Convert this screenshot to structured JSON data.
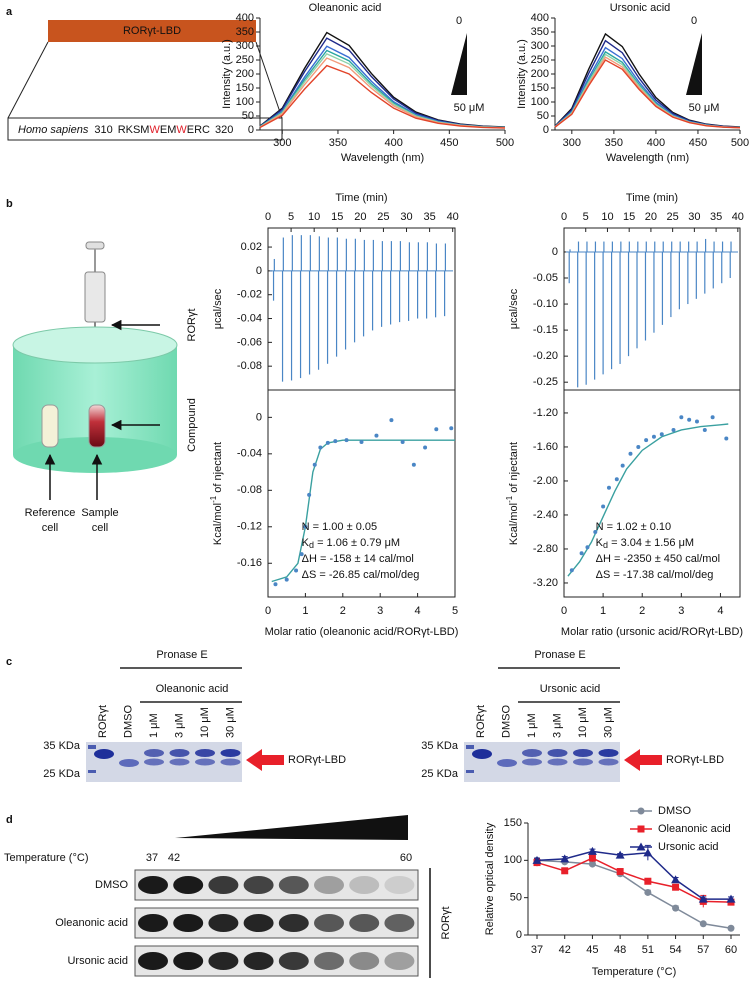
{
  "panel_labels": [
    "a",
    "b",
    "c",
    "d"
  ],
  "panel_a": {
    "domain_label": "RORγt-LBD",
    "species": "Homo sapiens",
    "start": "310",
    "sequence": [
      "RKSM",
      "W",
      "EM",
      "W",
      "ERC"
    ],
    "end": "320"
  },
  "panel_b": {
    "syringe_label": "RORγt",
    "cell_label": "Compound",
    "reference_cell": [
      "Reference",
      "cell"
    ],
    "sample_cell": [
      "Sample",
      "cell"
    ]
  },
  "panel_c": {
    "gels": [
      {
        "protease": "Pronase E",
        "compound": "Oleanonic acid",
        "lanes": [
          "RORγt",
          "DMSO",
          "1 μM",
          "3 μM",
          "10 μM",
          "30 μM"
        ],
        "markers": [
          "35 KDa",
          "25 KDa"
        ],
        "band_label": "RORγt-LBD"
      },
      {
        "protease": "Pronase E",
        "compound": "Ursonic acid",
        "lanes": [
          "RORγt",
          "DMSO",
          "1 μM",
          "3 μM",
          "10 μM",
          "30 μM"
        ],
        "markers": [
          "35 KDa",
          "25 KDa"
        ],
        "band_label": "RORγt-LBD"
      }
    ]
  },
  "panel_d": {
    "temperature_label": "Temperature (°C)",
    "temperature_start": "37",
    "temperature_second": "42",
    "temperature_end": "60",
    "rows": [
      "DMSO",
      "Oleanonic acid",
      "Ursonic acid"
    ],
    "protein": "RORγt"
  },
  "chart_data": [
    {
      "type": "line",
      "title": "Oleanonic acid",
      "x_label": "Wavelength (nm)",
      "y_label": "Intensity (a.u.)",
      "x": [
        280,
        300,
        320,
        340,
        360,
        380,
        400,
        420,
        440,
        460,
        480,
        500
      ],
      "xlim": [
        280,
        500
      ],
      "xticks": [
        300,
        350,
        400,
        450,
        500
      ],
      "ylim": [
        0,
        400
      ],
      "yticks": [
        0,
        50,
        100,
        150,
        200,
        250,
        300,
        350,
        400
      ],
      "series": [
        {
          "color": "#111111",
          "values": [
            14,
            78,
            220,
            348,
            302,
            202,
            117,
            64,
            36,
            21,
            14,
            11
          ]
        },
        {
          "color": "#1f2a8a",
          "values": [
            13,
            74,
            208,
            328,
            285,
            191,
            111,
            60,
            34,
            20,
            13,
            10
          ]
        },
        {
          "color": "#3b6fd4",
          "values": [
            12,
            67,
            189,
            299,
            259,
            174,
            101,
            55,
            31,
            18,
            12,
            9
          ]
        },
        {
          "color": "#2aa6a0",
          "values": [
            12,
            64,
            180,
            284,
            247,
            165,
            96,
            52,
            29,
            17,
            12,
            9
          ]
        },
        {
          "color": "#8fd3a8",
          "values": [
            11,
            61,
            172,
            272,
            236,
            158,
            92,
            50,
            28,
            17,
            11,
            8
          ]
        },
        {
          "color": "#f29a7a",
          "values": [
            10,
            58,
            162,
            257,
            223,
            149,
            86,
            47,
            26,
            16,
            10,
            8
          ]
        },
        {
          "color": "#e2442a",
          "values": [
            9,
            52,
            146,
            230,
            200,
            134,
            78,
            42,
            24,
            14,
            9,
            7
          ]
        }
      ],
      "annotations": [
        "0",
        "50 μM"
      ]
    },
    {
      "type": "line",
      "title": "Ursonic acid",
      "x_label": "Wavelength (nm)",
      "y_label": "Intensity (a.u.)",
      "x": [
        280,
        300,
        320,
        340,
        360,
        380,
        400,
        420,
        440,
        460,
        480,
        500
      ],
      "xlim": [
        280,
        500
      ],
      "xticks": [
        300,
        350,
        400,
        450,
        500
      ],
      "ylim": [
        0,
        400
      ],
      "yticks": [
        0,
        50,
        100,
        150,
        200,
        250,
        300,
        350,
        400
      ],
      "series": [
        {
          "color": "#111111",
          "values": [
            14,
            77,
            217,
            343,
            298,
            200,
            116,
            63,
            35,
            21,
            14,
            11
          ]
        },
        {
          "color": "#1f2a8a",
          "values": [
            13,
            72,
            202,
            319,
            276,
            185,
            107,
            59,
            33,
            20,
            13,
            10
          ]
        },
        {
          "color": "#3b6fd4",
          "values": [
            12,
            66,
            186,
            294,
            255,
            171,
            99,
            54,
            30,
            18,
            12,
            9
          ]
        },
        {
          "color": "#2aa6a0",
          "values": [
            11,
            63,
            177,
            279,
            242,
            162,
            94,
            51,
            29,
            17,
            11,
            9
          ]
        },
        {
          "color": "#8fd3a8",
          "values": [
            11,
            61,
            171,
            270,
            234,
            157,
            91,
            50,
            28,
            17,
            11,
            8
          ]
        },
        {
          "color": "#f29a7a",
          "values": [
            11,
            58,
            164,
            260,
            225,
            151,
            87,
            48,
            27,
            16,
            11,
            8
          ]
        },
        {
          "color": "#e2442a",
          "values": [
            10,
            56,
            158,
            250,
            217,
            145,
            84,
            46,
            26,
            15,
            10,
            8
          ]
        }
      ],
      "annotations": [
        "0",
        "50 μM"
      ]
    },
    {
      "type": "itc",
      "color": "#4a86c5",
      "fit_color": "#3aa0a0",
      "thermogram": {
        "x_label": "Time (min)",
        "y_label": "μcal/sec",
        "xlim": [
          0,
          40.5
        ],
        "xticks": [
          0,
          5,
          10,
          15,
          20,
          25,
          30,
          35,
          40
        ],
        "ylim": [
          -0.1,
          0.036
        ],
        "yticks": [
          0.02,
          0,
          -0.02,
          -0.04,
          -0.06,
          -0.08
        ],
        "x": [
          1.2,
          3.15,
          5.1,
          7.05,
          9,
          10.95,
          12.9,
          14.85,
          16.8,
          18.75,
          20.7,
          22.65,
          24.6,
          26.55,
          28.5,
          30.45,
          32.4,
          34.35,
          36.3,
          38.25
        ],
        "peaks": [
          -0.025,
          -0.093,
          -0.092,
          -0.09,
          -0.087,
          -0.083,
          -0.078,
          -0.072,
          -0.066,
          -0.06,
          -0.055,
          -0.05,
          -0.047,
          -0.045,
          -0.043,
          -0.042,
          -0.04,
          -0.04,
          -0.039,
          -0.038
        ],
        "overshoots": [
          0.01,
          0.028,
          0.03,
          0.03,
          0.03,
          0.029,
          0.028,
          0.028,
          0.027,
          0.027,
          0.026,
          0.026,
          0.025,
          0.025,
          0.025,
          0.024,
          0.024,
          0.024,
          0.023,
          0.023
        ]
      },
      "isotherm": {
        "x_label": "Molar ratio (oleanonic acid/RORγt-LBD)",
        "y_label": [
          "Kcal/mol",
          "-1",
          " of njectant"
        ],
        "xlim": [
          0,
          5
        ],
        "xticks": [
          0,
          1,
          2,
          3,
          4,
          5
        ],
        "ylim": [
          -0.197,
          0.03
        ],
        "yticks": [
          0,
          -0.04,
          -0.08,
          -0.12,
          -0.16
        ],
        "points": {
          "x": [
            0.2,
            0.5,
            0.75,
            0.9,
            1.0,
            1.1,
            1.25,
            1.4,
            1.6,
            1.8,
            2.1,
            2.5,
            2.9,
            3.3,
            3.6,
            3.9,
            4.2,
            4.5,
            4.9
          ],
          "values": [
            -0.183,
            -0.178,
            -0.168,
            -0.15,
            -0.12,
            -0.085,
            -0.052,
            -0.033,
            -0.028,
            -0.026,
            -0.025,
            -0.027,
            -0.02,
            -0.003,
            -0.027,
            -0.052,
            -0.033,
            -0.013,
            -0.012
          ]
        },
        "fit": {
          "x": [
            0.1,
            0.5,
            0.8,
            1.0,
            1.2,
            1.4,
            1.6,
            2,
            3,
            4,
            5
          ],
          "values": [
            -0.18,
            -0.175,
            -0.16,
            -0.12,
            -0.06,
            -0.035,
            -0.028,
            -0.025,
            -0.025,
            -0.025,
            -0.025
          ]
        },
        "annotations": [
          "N = 1.00 ± 0.05",
          {
            "main": "K",
            "sub": "d",
            "rest": " = 1.06 ± 0.79 μM"
          },
          "ΔH = -158 ± 14 cal/mol",
          "ΔS = -26.85 cal/mol/deg"
        ]
      }
    },
    {
      "type": "itc",
      "color": "#4a86c5",
      "fit_color": "#3aa0a0",
      "thermogram": {
        "x_label": "Time (min)",
        "y_label": "μcal/sec",
        "xlim": [
          0,
          40.5
        ],
        "xticks": [
          0,
          5,
          10,
          15,
          20,
          25,
          30,
          35,
          40
        ],
        "ylim": [
          -0.265,
          0.046
        ],
        "yticks": [
          0,
          -0.05,
          {
            "value": -0.1,
            "label": "-0.10"
          },
          -0.15,
          {
            "value": -0.2,
            "label": "-0.20"
          },
          -0.25
        ],
        "x": [
          1.2,
          3.15,
          5.1,
          7.05,
          9,
          10.95,
          12.9,
          14.85,
          16.8,
          18.75,
          20.7,
          22.65,
          24.6,
          26.55,
          28.5,
          30.45,
          32.4,
          34.35,
          36.3,
          38.25
        ],
        "peaks": [
          -0.06,
          -0.26,
          -0.255,
          -0.245,
          -0.235,
          -0.225,
          -0.215,
          -0.2,
          -0.185,
          -0.17,
          -0.155,
          -0.14,
          -0.125,
          -0.11,
          -0.1,
          -0.09,
          -0.08,
          -0.07,
          -0.06,
          -0.05
        ],
        "overshoots": [
          0.005,
          0.02,
          0.02,
          0.02,
          0.02,
          0.02,
          0.02,
          0.02,
          0.02,
          0.02,
          0.02,
          0.02,
          0.02,
          0.02,
          0.02,
          0.02,
          0.025,
          0.02,
          0.02,
          0.02
        ]
      },
      "isotherm": {
        "x_label": "Molar ratio (ursonic acid/RORγt-LBD)",
        "y_label": [
          "Kcal/mol",
          "-1",
          " of njectant"
        ],
        "xlim": [
          0,
          4.5
        ],
        "xticks": [
          0,
          1,
          2,
          3,
          4
        ],
        "ylim": [
          -3.365,
          -0.93
        ],
        "yticks": [
          {
            "value": -1.2,
            "label": "-1.20"
          },
          {
            "value": -1.6,
            "label": "-1.60"
          },
          {
            "value": -2,
            "label": "-2.00"
          },
          {
            "value": -2.4,
            "label": "-2.40"
          },
          {
            "value": -2.8,
            "label": "-2.80"
          },
          {
            "value": -3.2,
            "label": "-3.20"
          }
        ],
        "points": {
          "x": [
            0.2,
            0.45,
            0.6,
            0.8,
            1.0,
            1.15,
            1.35,
            1.5,
            1.7,
            1.9,
            2.1,
            2.3,
            2.5,
            2.8,
            3.0,
            3.2,
            3.4,
            3.6,
            3.8,
            4.15
          ],
          "values": [
            -3.05,
            -2.85,
            -2.78,
            -2.6,
            -2.3,
            -2.08,
            -1.98,
            -1.82,
            -1.68,
            -1.6,
            -1.52,
            -1.48,
            -1.45,
            -1.4,
            -1.25,
            -1.28,
            -1.3,
            -1.4,
            -1.25,
            -1.5
          ]
        },
        "fit": {
          "x": [
            0.1,
            0.4,
            0.7,
            1.0,
            1.3,
            1.6,
            2,
            2.5,
            3,
            3.5,
            4,
            4.2
          ],
          "values": [
            -3.12,
            -2.95,
            -2.72,
            -2.42,
            -2.12,
            -1.86,
            -1.64,
            -1.48,
            -1.4,
            -1.36,
            -1.34,
            -1.33
          ]
        },
        "annotations": [
          "N = 1.02 ± 0.10",
          {
            "main": "K",
            "sub": "d",
            "rest": " = 3.04 ± 1.56 μM"
          },
          "ΔH = -2350 ± 450 cal/mol",
          "ΔS = -17.38 cal/mol/deg"
        ]
      }
    },
    {
      "type": "line",
      "x_label": "Temperature (°C)",
      "y_label": "Relative optical density",
      "categories": [
        "37",
        "42",
        "45",
        "48",
        "51",
        "54",
        "57",
        "60"
      ],
      "ylim": [
        0,
        150
      ],
      "yticks": [
        0,
        50,
        100,
        150
      ],
      "legend": "upper right",
      "series": [
        {
          "name": "DMSO",
          "color": "#7f8a9a",
          "marker": "circle",
          "values": [
            100,
            98,
            95,
            82,
            57,
            36,
            15,
            9
          ],
          "errors": [
            2,
            2,
            2,
            2,
            3,
            3,
            2,
            2
          ]
        },
        {
          "name": "Oleanonic acid",
          "color": "#e8202a",
          "marker": "square",
          "values": [
            97,
            86,
            103,
            85,
            72,
            64,
            45,
            44
          ],
          "errors": [
            5,
            3,
            5,
            3,
            3,
            3,
            8,
            4
          ]
        },
        {
          "name": "Ursonic acid",
          "color": "#1f2a8a",
          "marker": "triangle",
          "values": [
            100,
            102,
            112,
            107,
            110,
            74,
            48,
            48
          ],
          "errors": [
            3,
            3,
            3,
            2,
            10,
            3,
            3,
            3
          ]
        }
      ]
    }
  ]
}
